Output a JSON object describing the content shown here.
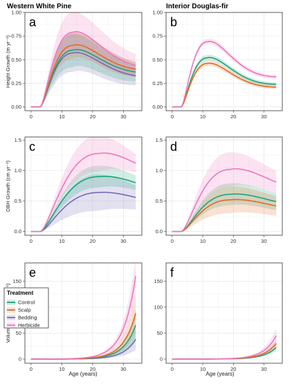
{
  "figure": {
    "column_titles": [
      "Western White Pine",
      "Interior Douglas-fir"
    ],
    "x_axis_label": "Age (years)"
  },
  "treatments": [
    {
      "name": "Control",
      "color": "#1aa37a"
    },
    {
      "name": "Scalp",
      "color": "#e06a24"
    },
    {
      "name": "Bedding",
      "color": "#7469b6"
    },
    {
      "name": "Herbicide",
      "color": "#ee74bd"
    }
  ],
  "legend": {
    "title": "Treatment",
    "placement": "left, panel e"
  },
  "chart_data": [
    {
      "type": "line",
      "panel_label": "a",
      "ylabel": "Height Growth (m yr⁻¹)",
      "xlim": [
        -2,
        36
      ],
      "ylim": [
        -0.04,
        1.0
      ],
      "xticks": [
        0,
        10,
        20,
        30
      ],
      "yticks": [
        0.0,
        0.25,
        0.5,
        0.75,
        1.0
      ],
      "ytick_labels": [
        "0.00",
        "0.25",
        "0.50",
        "0.75",
        "1.00"
      ],
      "grid": true,
      "x_start": 3,
      "x_end": 34,
      "peak_x": 13.5,
      "series": [
        {
          "name": "Control",
          "values_at_0_peak_end": [
            0.0,
            0.6,
            0.37
          ],
          "band": [
            0.18,
            0.1
          ]
        },
        {
          "name": "Scalp",
          "values_at_0_peak_end": [
            0.0,
            0.65,
            0.4
          ],
          "band": [
            0.14,
            0.08
          ]
        },
        {
          "name": "Bedding",
          "values_at_0_peak_end": [
            0.0,
            0.57,
            0.33
          ],
          "band": [
            0.2,
            0.1
          ]
        },
        {
          "name": "Herbicide",
          "values_at_0_peak_end": [
            0.0,
            0.79,
            0.44
          ],
          "band": [
            0.21,
            0.12
          ]
        }
      ]
    },
    {
      "type": "line",
      "panel_label": "b",
      "ylabel": "",
      "xlim": [
        -2,
        36
      ],
      "ylim": [
        -0.04,
        1.0
      ],
      "xticks": [
        0,
        10,
        20,
        30
      ],
      "yticks": [
        0.0,
        0.25,
        0.5,
        0.75,
        1.0
      ],
      "ytick_labels": [
        "0.00",
        "0.25",
        "0.50",
        "0.75",
        "1.00"
      ],
      "grid": true,
      "x_start": 3,
      "x_end": 34,
      "peak_x": 11.5,
      "series": [
        {
          "name": "Control",
          "values_at_0_peak_end": [
            0.0,
            0.52,
            0.24
          ],
          "band": [
            0.03,
            0.02
          ]
        },
        {
          "name": "Scalp",
          "values_at_0_peak_end": [
            0.0,
            0.46,
            0.21
          ],
          "band": [
            0.03,
            0.02
          ]
        },
        {
          "name": "Herbicide",
          "values_at_0_peak_end": [
            0.0,
            0.69,
            0.32
          ],
          "band": [
            0.03,
            0.02
          ]
        }
      ]
    },
    {
      "type": "line",
      "panel_label": "c",
      "ylabel": "DBH Growth (cm yr⁻¹)",
      "xlim": [
        -2,
        36
      ],
      "ylim": [
        -0.06,
        1.55
      ],
      "xticks": [
        0,
        10,
        20,
        30
      ],
      "yticks": [
        0.0,
        0.5,
        1.0,
        1.5
      ],
      "ytick_labels": [
        "0.0",
        "0.5",
        "1.0",
        "1.5"
      ],
      "grid": true,
      "x_start": 3,
      "x_end": 34,
      "peak_x": 22,
      "series": [
        {
          "name": "Control",
          "values_at_0_peak_end": [
            0.0,
            0.9,
            0.8
          ],
          "band": [
            0.18,
            0.12
          ]
        },
        {
          "name": "Bedding",
          "values_at_0_peak_end": [
            0.0,
            0.64,
            0.56
          ],
          "band": [
            0.3,
            0.2
          ]
        },
        {
          "name": "Herbicide",
          "values_at_0_peak_end": [
            0.0,
            1.28,
            1.12
          ],
          "band": [
            0.3,
            0.15
          ]
        }
      ]
    },
    {
      "type": "line",
      "panel_label": "d",
      "ylabel": "",
      "xlim": [
        -2,
        36
      ],
      "ylim": [
        -0.06,
        1.55
      ],
      "xticks": [
        0,
        10,
        20,
        30
      ],
      "yticks": [
        0.0,
        0.5,
        1.0,
        1.5
      ],
      "ytick_labels": [
        "0.0",
        "0.5",
        "1.0",
        "1.5"
      ],
      "grid": true,
      "x_start": 3,
      "x_end": 34,
      "peak_x": 19,
      "series": [
        {
          "name": "Control",
          "values_at_0_peak_end": [
            0.0,
            0.61,
            0.49
          ],
          "band": [
            0.18,
            0.14
          ]
        },
        {
          "name": "Scalp",
          "values_at_0_peak_end": [
            0.0,
            0.52,
            0.42
          ],
          "band": [
            0.22,
            0.16
          ]
        },
        {
          "name": "Herbicide",
          "values_at_0_peak_end": [
            0.0,
            1.02,
            0.81
          ],
          "band": [
            0.28,
            0.18
          ]
        }
      ]
    },
    {
      "type": "line",
      "panel_label": "e",
      "ylabel": "Volume Growth (dm³ yr⁻¹)",
      "xlim": [
        -2,
        36
      ],
      "ylim": [
        -8,
        185
      ],
      "xticks": [
        0,
        10,
        20,
        30
      ],
      "yticks": [
        0,
        50,
        100,
        150
      ],
      "ytick_labels": [
        "0",
        "50",
        "100",
        "150"
      ],
      "grid": true,
      "x_start": 0,
      "x_end": 34,
      "growth": "exponential",
      "series": [
        {
          "name": "Control",
          "values_at_0_peak_end": [
            0,
            0,
            65
          ],
          "band": [
            30,
            30
          ]
        },
        {
          "name": "Scalp",
          "values_at_0_peak_end": [
            0,
            0,
            88
          ],
          "band": [
            35,
            35
          ]
        },
        {
          "name": "Bedding",
          "values_at_0_peak_end": [
            0,
            0,
            38
          ],
          "band": [
            20,
            20
          ]
        },
        {
          "name": "Herbicide",
          "values_at_0_peak_end": [
            0,
            0,
            160
          ],
          "band": [
            40,
            40
          ]
        }
      ]
    },
    {
      "type": "line",
      "panel_label": "f",
      "ylabel": "",
      "xlim": [
        -2,
        36
      ],
      "ylim": [
        -8,
        185
      ],
      "xticks": [
        0,
        10,
        20,
        30
      ],
      "yticks": [
        0,
        50,
        100,
        150
      ],
      "ytick_labels": [
        "0",
        "50",
        "100",
        "150"
      ],
      "grid": true,
      "x_start": 0,
      "x_end": 34,
      "growth": "exponential",
      "series": [
        {
          "name": "Control",
          "values_at_0_peak_end": [
            0,
            0,
            22
          ],
          "band": [
            6,
            6
          ]
        },
        {
          "name": "Scalp",
          "values_at_0_peak_end": [
            0,
            0,
            30
          ],
          "band": [
            8,
            8
          ]
        },
        {
          "name": "Herbicide",
          "values_at_0_peak_end": [
            0,
            0,
            45
          ],
          "band": [
            15,
            15
          ]
        }
      ]
    }
  ]
}
